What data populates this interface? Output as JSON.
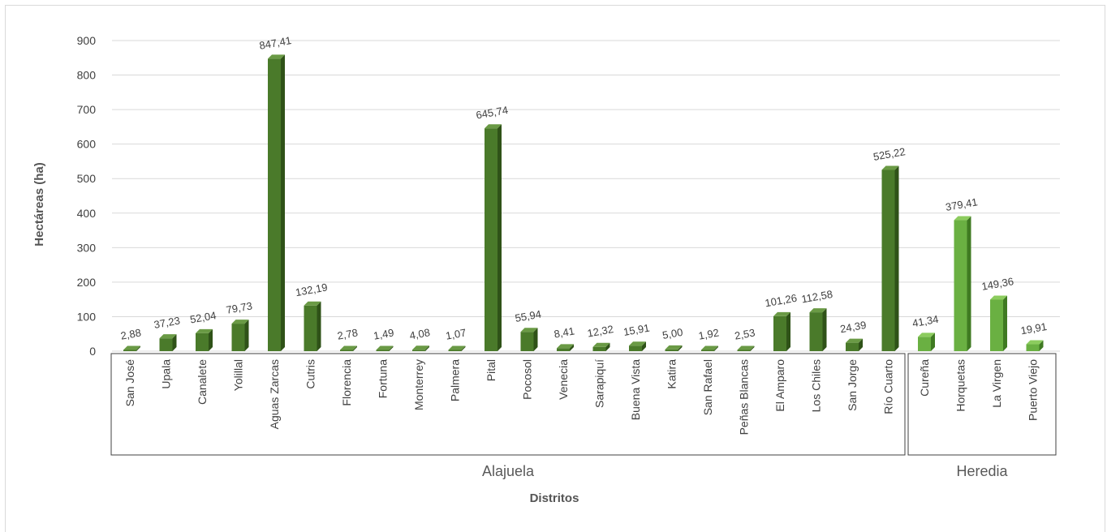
{
  "chart_data": {
    "type": "bar",
    "ylabel": "Hectáreas (ha)",
    "xlabel": "Distritos",
    "ylim": [
      0,
      900
    ],
    "yticks": [
      0,
      100,
      200,
      300,
      400,
      500,
      600,
      700,
      800,
      900
    ],
    "grid": true,
    "groups": [
      {
        "name": "Alajuela",
        "color": "#4a7a2a",
        "categories": [
          "San José",
          "Upala",
          "Canalete",
          "Yolillal",
          "Aguas Zarcas",
          "Cutris",
          "Florencia",
          "Fortuna",
          "Monterrey",
          "Palmera",
          "Pital",
          "Pocosol",
          "Venecia",
          "Sarapiquí",
          "Buena Vista",
          "Katira",
          "San Rafael",
          "Peñas Blancas",
          "El Amparo",
          "Los Chiles",
          "San Jorge",
          "Río Cuarto"
        ],
        "values": [
          2.88,
          37.23,
          52.04,
          79.73,
          847.41,
          132.19,
          2.78,
          1.49,
          4.08,
          1.07,
          645.74,
          55.94,
          8.41,
          12.32,
          15.91,
          5.0,
          1.92,
          2.53,
          101.26,
          112.58,
          24.39,
          525.22
        ],
        "labels": [
          "2,88",
          "37,23",
          "52,04",
          "79,73",
          "847,41",
          "132,19",
          "2,78",
          "1,49",
          "4,08",
          "1,07",
          "645,74",
          "55,94",
          "8,41",
          "12,32",
          "15,91",
          "5,00",
          "1,92",
          "2,53",
          "101,26",
          "112,58",
          "24,39",
          "525,22"
        ]
      },
      {
        "name": "Heredia",
        "color": "#6ab042",
        "categories": [
          "Cureña",
          "Horquetas",
          "La Virgen",
          "Puerto Viejo"
        ],
        "values": [
          41.34,
          379.41,
          149.36,
          19.91
        ],
        "labels": [
          "41,34",
          "379,41",
          "149,36",
          "19,91"
        ]
      }
    ]
  }
}
